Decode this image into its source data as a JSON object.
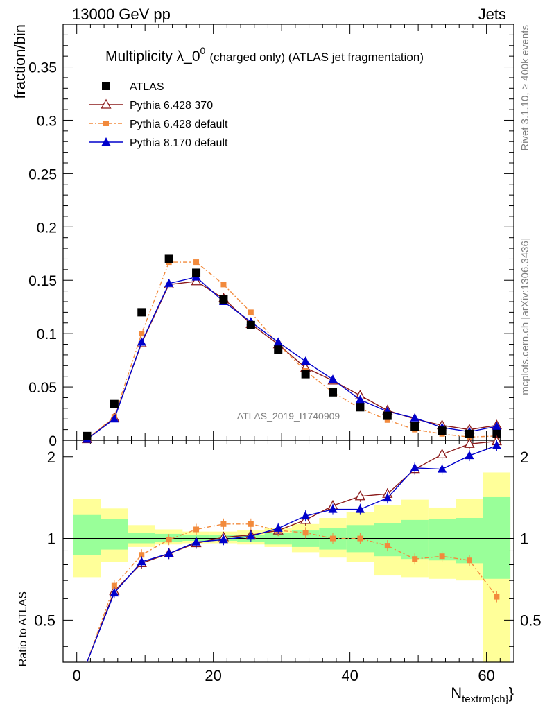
{
  "header": {
    "left": "13000 GeV pp",
    "right": "Jets"
  },
  "side": {
    "rivet": "Rivet 3.1.10, ≥ 400k events",
    "mcplots": "mcplots.cern.ch [arXiv:1306.3436]"
  },
  "watermark": "ATLAS_2019_I1740909",
  "chart_data": {
    "type": "line",
    "title": "Multiplicity λ_0",
    "title_sup": "0",
    "title_suffix": "(charged only) (ATLAS jet fragmentation)",
    "ylabel": "fraction/bin",
    "ratio_ylabel": "Ratio to ATLAS",
    "xlabel": "N",
    "xlabel_sub": "textrm{ch}",
    "xlabel_close": "}",
    "xlim": [
      -2,
      64
    ],
    "ylim": [
      0,
      0.39
    ],
    "ratio_ylim": [
      0.35,
      2.3
    ],
    "xticks": [
      "0",
      "20",
      "40",
      "60"
    ],
    "yticks": [
      "0",
      "0.05",
      "0.1",
      "0.15",
      "0.2",
      "0.25",
      "0.3",
      "0.35"
    ],
    "ratio_yticks": [
      "0.5",
      "1",
      "2"
    ],
    "x": [
      1.5,
      5.5,
      9.5,
      13.5,
      17.5,
      21.5,
      25.5,
      29.5,
      33.5,
      37.5,
      41.5,
      45.5,
      49.5,
      53.5,
      57.5,
      61.5
    ],
    "bands": {
      "edges": [
        -0.5,
        3.5,
        7.5,
        11.5,
        15.5,
        19.5,
        23.5,
        27.5,
        31.5,
        35.5,
        39.5,
        43.5,
        47.5,
        51.5,
        55.5,
        59.5,
        63.5
      ],
      "green": [
        [
          0.87,
          1.22
        ],
        [
          0.91,
          1.18
        ],
        [
          0.96,
          1.05
        ],
        [
          0.97,
          1.04
        ],
        [
          0.98,
          1.03
        ],
        [
          0.98,
          1.03
        ],
        [
          0.97,
          1.03
        ],
        [
          0.95,
          1.05
        ],
        [
          0.93,
          1.07
        ],
        [
          0.91,
          1.09
        ],
        [
          0.89,
          1.12
        ],
        [
          0.86,
          1.14
        ],
        [
          0.84,
          1.17
        ],
        [
          0.83,
          1.18
        ],
        [
          0.81,
          1.19
        ],
        [
          0.71,
          1.42
        ]
      ],
      "yellow": [
        [
          0.72,
          1.4
        ],
        [
          0.82,
          1.29
        ],
        [
          0.93,
          1.12
        ],
        [
          0.95,
          1.08
        ],
        [
          0.96,
          1.06
        ],
        [
          0.96,
          1.06
        ],
        [
          0.95,
          1.07
        ],
        [
          0.93,
          1.09
        ],
        [
          0.89,
          1.13
        ],
        [
          0.85,
          1.19
        ],
        [
          0.82,
          1.25
        ],
        [
          0.73,
          1.33
        ],
        [
          0.72,
          1.39
        ],
        [
          0.71,
          1.3
        ],
        [
          0.7,
          1.4
        ],
        [
          0.35,
          1.75
        ]
      ]
    },
    "series": [
      {
        "name": "ATLAS",
        "color": "#000000",
        "marker": "square",
        "dash": "none",
        "values": [
          0.004,
          0.034,
          0.12,
          0.17,
          0.157,
          0.132,
          0.108,
          0.085,
          0.062,
          0.045,
          0.031,
          0.023,
          0.013,
          0.009,
          0.006,
          0.006
        ]
      },
      {
        "name": "Pythia 6.428 370",
        "color": "#8b1a1a",
        "marker": "triangle-open",
        "dash": "none",
        "values": [
          0.001,
          0.021,
          0.091,
          0.146,
          0.149,
          0.133,
          0.109,
          0.09,
          0.068,
          0.056,
          0.042,
          0.028,
          0.02,
          0.014,
          0.01,
          0.014
        ],
        "ratio": [
          0.25,
          0.64,
          0.81,
          0.88,
          0.96,
          1.01,
          1.03,
          1.07,
          1.17,
          1.32,
          1.43,
          1.46,
          1.8,
          2.04,
          2.23,
          2.28
        ]
      },
      {
        "name": "Pythia 6.428 default",
        "color": "#f28a3c",
        "marker": "square-small",
        "dash": "6,3,2,3",
        "values": [
          0.001,
          0.022,
          0.1,
          0.167,
          0.167,
          0.146,
          0.12,
          0.09,
          0.065,
          0.045,
          0.03,
          0.019,
          0.01,
          0.006,
          0.003,
          0.004
        ],
        "ratio": [
          0.27,
          0.67,
          0.87,
          0.99,
          1.08,
          1.13,
          1.13,
          1.07,
          1.05,
          1.0,
          1.0,
          0.94,
          0.84,
          0.86,
          0.83,
          0.61
        ]
      },
      {
        "name": "Pythia 8.170 default",
        "color": "#0000cc",
        "marker": "triangle",
        "dash": "none",
        "values": [
          0.001,
          0.02,
          0.092,
          0.147,
          0.153,
          0.13,
          0.111,
          0.092,
          0.074,
          0.057,
          0.038,
          0.027,
          0.021,
          0.012,
          0.008,
          0.013
        ],
        "ratio": [
          0.25,
          0.63,
          0.82,
          0.88,
          0.97,
          0.99,
          1.02,
          1.09,
          1.21,
          1.28,
          1.28,
          1.41,
          1.82,
          1.8,
          2.02,
          2.2
        ]
      }
    ]
  }
}
